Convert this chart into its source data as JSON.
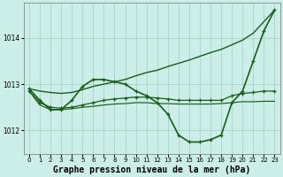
{
  "background_color": "#cceee8",
  "grid_color": "#aad4c8",
  "line_color": "#1a5c1a",
  "title": "Graphe pression niveau de la mer (hPa)",
  "title_fontsize": 7.0,
  "ylim": [
    1011.5,
    1014.75
  ],
  "xlim": [
    -0.5,
    23.5
  ],
  "yticks": [
    1012,
    1013,
    1014
  ],
  "xticks": [
    0,
    1,
    2,
    3,
    4,
    5,
    6,
    7,
    8,
    9,
    10,
    11,
    12,
    13,
    14,
    15,
    16,
    17,
    18,
    19,
    20,
    21,
    22,
    23
  ],
  "series": [
    {
      "x": [
        0,
        1,
        2,
        3,
        4,
        5,
        6,
        7,
        8,
        9,
        10,
        11,
        12,
        13,
        14,
        15,
        16,
        17,
        18,
        19,
        20,
        21,
        22,
        23
      ],
      "y": [
        1012.9,
        1012.65,
        1012.45,
        1012.45,
        1012.65,
        1012.95,
        1013.1,
        1013.1,
        1013.05,
        1013.0,
        1012.85,
        1012.75,
        1012.6,
        1012.35,
        1011.9,
        1011.75,
        1011.75,
        1011.8,
        1011.9,
        1012.6,
        1012.85,
        1013.5,
        1014.15,
        1014.6
      ],
      "marker": "+",
      "ms": 3,
      "lw": 1.2
    },
    {
      "x": [
        0,
        1,
        2,
        3,
        4,
        5,
        6,
        7,
        8,
        9,
        10,
        11,
        12,
        13,
        14,
        15,
        16,
        17,
        18,
        19,
        20,
        21,
        22,
        23
      ],
      "y": [
        1012.9,
        1012.85,
        1012.82,
        1012.8,
        1012.82,
        1012.88,
        1012.95,
        1013.0,
        1013.05,
        1013.1,
        1013.18,
        1013.25,
        1013.3,
        1013.38,
        1013.45,
        1013.52,
        1013.6,
        1013.68,
        1013.75,
        1013.85,
        1013.95,
        1014.1,
        1014.35,
        1014.6
      ],
      "marker": null,
      "ms": 0,
      "lw": 1.0
    },
    {
      "x": [
        0,
        1,
        2,
        3,
        4,
        5,
        6,
        7,
        8,
        9,
        10,
        11,
        12,
        13,
        14,
        15,
        16,
        17,
        18,
        19,
        20,
        21,
        22,
        23
      ],
      "y": [
        1012.85,
        1012.6,
        1012.5,
        1012.48,
        1012.5,
        1012.55,
        1012.6,
        1012.65,
        1012.68,
        1012.7,
        1012.72,
        1012.72,
        1012.7,
        1012.68,
        1012.65,
        1012.65,
        1012.65,
        1012.65,
        1012.65,
        1012.75,
        1012.8,
        1012.82,
        1012.85,
        1012.85
      ],
      "marker": "+",
      "ms": 3,
      "lw": 0.9
    },
    {
      "x": [
        0,
        1,
        2,
        3,
        4,
        5,
        6,
        7,
        8,
        9,
        10,
        11,
        12,
        13,
        14,
        15,
        16,
        17,
        18,
        19,
        20,
        21,
        22,
        23
      ],
      "y": [
        1012.85,
        1012.55,
        1012.45,
        1012.45,
        1012.47,
        1012.5,
        1012.52,
        1012.55,
        1012.57,
        1012.58,
        1012.6,
        1012.6,
        1012.58,
        1012.58,
        1012.57,
        1012.57,
        1012.57,
        1012.57,
        1012.58,
        1012.6,
        1012.62,
        1012.62,
        1012.63,
        1012.63
      ],
      "marker": null,
      "ms": 0,
      "lw": 0.85
    }
  ]
}
